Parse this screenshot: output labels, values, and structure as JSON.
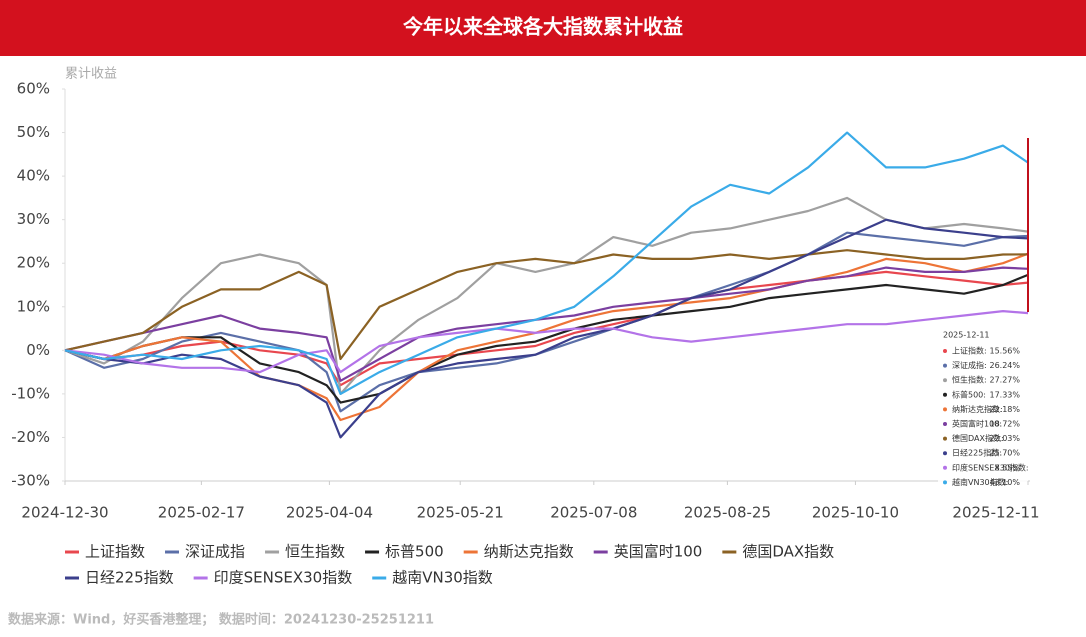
{
  "chart_data": {
    "type": "line",
    "title": "今年以来全球各大指数累计收益",
    "y_label": "累计收益",
    "source": "数据来源：Wind，好买香港整理；  数据时间：20241230-25251211",
    "x": [
      "2024-12-30",
      "2025-01-13",
      "2025-01-27",
      "2025-02-10",
      "2025-02-24",
      "2025-03-10",
      "2025-03-24",
      "2025-04-03",
      "2025-04-08",
      "2025-04-22",
      "2025-05-06",
      "2025-05-20",
      "2025-06-03",
      "2025-06-17",
      "2025-07-01",
      "2025-07-15",
      "2025-07-29",
      "2025-08-12",
      "2025-08-26",
      "2025-09-09",
      "2025-09-23",
      "2025-10-07",
      "2025-10-21",
      "2025-11-04",
      "2025-11-18",
      "2025-12-02",
      "2025-12-11"
    ],
    "xlim": [
      "2024-12-30",
      "2025-12-11"
    ],
    "xticks": [
      "2024-12-30",
      "2025-02-17",
      "2025-04-04",
      "2025-05-21",
      "2025-07-08",
      "2025-08-25",
      "2025-10-10",
      "2025-12-11"
    ],
    "ylim": [
      -30,
      60
    ],
    "yticks": [
      {
        "value": -30,
        "label": "-30%"
      },
      {
        "value": -20,
        "label": "-20%"
      },
      {
        "value": -10,
        "label": "-10%"
      },
      {
        "value": 0,
        "label": "0%"
      },
      {
        "value": 10,
        "label": "10%"
      },
      {
        "value": 20,
        "label": "20%"
      },
      {
        "value": 30,
        "label": "30%"
      },
      {
        "value": 40,
        "label": "40%"
      },
      {
        "value": 50,
        "label": "50%"
      },
      {
        "value": 60,
        "label": "60%"
      }
    ],
    "grid": false,
    "series": [
      {
        "name": "上证指数",
        "color": "#e8474e",
        "values": [
          0,
          -2,
          -1,
          1,
          2,
          0,
          -1,
          -3,
          -8,
          -3,
          -2,
          -1,
          0,
          1,
          4,
          6,
          8,
          12,
          14,
          15,
          16,
          17,
          18,
          17,
          16,
          15,
          15.56
        ]
      },
      {
        "name": "深证成指",
        "color": "#5b6fa8",
        "values": [
          0,
          -4,
          -2,
          2,
          4,
          2,
          0,
          -5,
          -14,
          -8,
          -5,
          -4,
          -3,
          -1,
          2,
          5,
          8,
          12,
          15,
          18,
          22,
          27,
          26,
          25,
          24,
          26,
          26.24
        ]
      },
      {
        "name": "恒生指数",
        "color": "#a0a0a0",
        "values": [
          0,
          -3,
          2,
          12,
          20,
          22,
          20,
          15,
          -10,
          0,
          7,
          12,
          20,
          18,
          20,
          26,
          24,
          27,
          28,
          30,
          32,
          35,
          30,
          28,
          29,
          28,
          27.27
        ]
      },
      {
        "name": "标普500",
        "color": "#222222",
        "values": [
          0,
          -2,
          1,
          3,
          3,
          -3,
          -5,
          -8,
          -12,
          -10,
          -5,
          -1,
          1,
          2,
          5,
          7,
          8,
          9,
          10,
          12,
          13,
          14,
          15,
          14,
          13,
          15,
          17.33
        ]
      },
      {
        "name": "纳斯达克指数",
        "color": "#ed7437",
        "values": [
          0,
          -2,
          1,
          3,
          2,
          -6,
          -8,
          -11,
          -16,
          -13,
          -5,
          0,
          2,
          4,
          7,
          9,
          10,
          11,
          12,
          14,
          16,
          18,
          21,
          20,
          18,
          20,
          22.18
        ]
      },
      {
        "name": "英国富时100",
        "color": "#7b3fa0",
        "values": [
          0,
          2,
          4,
          6,
          8,
          5,
          4,
          3,
          -7,
          -2,
          3,
          5,
          6,
          7,
          8,
          10,
          11,
          12,
          13,
          14,
          16,
          17,
          19,
          18,
          18,
          19,
          18.72
        ]
      },
      {
        "name": "德国DAX指数",
        "color": "#8b6224",
        "values": [
          0,
          2,
          4,
          10,
          14,
          14,
          18,
          15,
          -2,
          10,
          14,
          18,
          20,
          21,
          20,
          22,
          21,
          21,
          22,
          21,
          22,
          23,
          22,
          21,
          21,
          22,
          22.03
        ]
      },
      {
        "name": "日经225指数",
        "color": "#3b3f8c",
        "values": [
          0,
          -2,
          -3,
          -1,
          -2,
          -6,
          -8,
          -12,
          -20,
          -10,
          -5,
          -3,
          -2,
          -1,
          3,
          5,
          8,
          12,
          14,
          18,
          22,
          26,
          30,
          28,
          27,
          26,
          25.7
        ]
      },
      {
        "name": "印度SENSEX30指数",
        "color": "#b373e8",
        "values": [
          0,
          -1,
          -3,
          -4,
          -4,
          -5,
          -1,
          0,
          -5,
          1,
          3,
          4,
          5,
          4,
          5,
          5,
          3,
          2,
          3,
          4,
          5,
          6,
          6,
          7,
          8,
          9,
          8.55
        ]
      },
      {
        "name": "越南VN30指数",
        "color": "#3aabe8",
        "values": [
          0,
          -2,
          -1,
          -2,
          0,
          1,
          0,
          -2,
          -10,
          -5,
          -1,
          3,
          5,
          7,
          10,
          17,
          25,
          33,
          38,
          36,
          42,
          50,
          42,
          42,
          44,
          47,
          43.1
        ]
      }
    ],
    "tooltip": {
      "date": "2025-12-11",
      "names": [
        "上证指数:",
        "深证成指:",
        "恒生指数:",
        "标普500:",
        "纳斯达克指数:",
        "英国富时100:",
        "德国DAX指数:",
        "日经225指数:",
        "印度SENSEX30指数:",
        "越南VN30指数:"
      ],
      "value_labels": [
        "15.56%",
        "26.24%",
        "27.27%",
        "17.33%",
        "22.18%",
        "18.72%",
        "22.03%",
        "25.70%",
        "8.55%",
        "43.10%"
      ]
    }
  }
}
